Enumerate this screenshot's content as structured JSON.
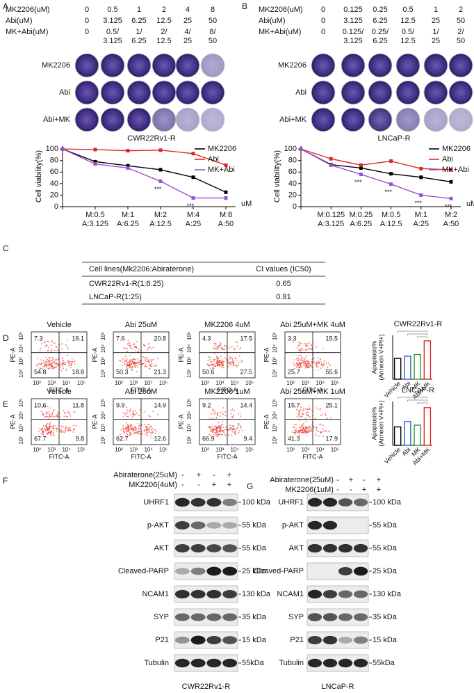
{
  "panels": {
    "a": "A",
    "b": "B",
    "c": "C",
    "d": "D",
    "e": "E",
    "f": "F",
    "g": "G"
  },
  "colony": [
    {
      "dose_rows": [
        {
          "label": "MK2206(uM)",
          "values": [
            [
              "0"
            ],
            [
              "0.5"
            ],
            [
              "1"
            ],
            [
              "2"
            ],
            [
              "4"
            ],
            [
              "8"
            ]
          ]
        },
        {
          "label": "Abi(uM)",
          "values": [
            [
              "0"
            ],
            [
              "3.125"
            ],
            [
              "6.25"
            ],
            [
              "12.5"
            ],
            [
              "25"
            ],
            [
              "50"
            ]
          ]
        },
        {
          "label": "MK+Abi(uM)",
          "values": [
            [
              "0"
            ],
            [
              "0.5/",
              "3.125"
            ],
            [
              "1/",
              "6.25"
            ],
            [
              "2/",
              "12.5"
            ],
            [
              "4/",
              "25"
            ],
            [
              "8/",
              "50"
            ]
          ]
        }
      ],
      "well_rows": [
        "MK2206",
        "Abi",
        "Abi+MK"
      ],
      "cell_line": "CWR22Rv1-R"
    },
    {
      "dose_rows": [
        {
          "label": "MK2206(uM)",
          "values": [
            [
              "0"
            ],
            [
              "0.125"
            ],
            [
              "0.25"
            ],
            [
              "0.5"
            ],
            [
              "1"
            ],
            [
              "2"
            ]
          ]
        },
        {
          "label": "Abi(uM)",
          "values": [
            [
              "0"
            ],
            [
              "3.125"
            ],
            [
              "6.25"
            ],
            [
              "12.5"
            ],
            [
              "25"
            ],
            [
              "50"
            ]
          ]
        },
        {
          "label": "MK+Abi(uM)",
          "values": [
            [
              "0"
            ],
            [
              "0.125/",
              "3.125"
            ],
            [
              "0.25/",
              "6.25"
            ],
            [
              "0.5/",
              "12.5"
            ],
            [
              "1/",
              "25"
            ],
            [
              "2/",
              "50"
            ]
          ]
        }
      ],
      "well_rows": [
        "MK2206",
        "Abi",
        "Abi+MK"
      ],
      "cell_line": "LNCaP-R"
    }
  ],
  "chart_data": [
    {
      "type": "line",
      "x_label": "uM",
      "y_label": "Cell viability(%)",
      "categories": [
        null,
        [
          "M:0.5",
          "A:3.125"
        ],
        [
          "M:1",
          "A:6.25"
        ],
        [
          "M:2",
          "A:12.5"
        ],
        [
          "M:4",
          "A:25"
        ],
        [
          "M:8",
          "A:50"
        ]
      ],
      "ylim": [
        0,
        105
      ],
      "yticks": [
        0,
        20,
        40,
        60,
        80,
        100
      ],
      "legend": "upper right",
      "series": [
        {
          "name": "MK2206",
          "color": "#000000",
          "values": [
            100,
            78,
            71,
            64,
            51,
            25
          ]
        },
        {
          "name": "Abi",
          "color": "#e0261f",
          "values": [
            100,
            99,
            97,
            98,
            92,
            72
          ]
        },
        {
          "name": "MK+Abi",
          "color": "#9b4fd8",
          "values": [
            100,
            74,
            67,
            44,
            15,
            15
          ],
          "significance": [
            null,
            null,
            null,
            "***",
            "***",
            null
          ]
        }
      ]
    },
    {
      "type": "line",
      "x_label": "uM",
      "y_label": "Cell viability(%)",
      "categories": [
        null,
        [
          "M:0.125",
          "A:3.125"
        ],
        [
          "M:0.25",
          "A:6.25"
        ],
        [
          "M:0.5",
          "A:12.5"
        ],
        [
          "M:1",
          "A:25"
        ],
        [
          "M:2",
          "A:50"
        ]
      ],
      "ylim": [
        0,
        105
      ],
      "yticks": [
        0,
        20,
        40,
        60,
        80,
        100
      ],
      "legend": "upper right",
      "series": [
        {
          "name": "MK2206",
          "color": "#000000",
          "values": [
            100,
            73,
            67,
            57,
            51,
            43
          ]
        },
        {
          "name": "Abi",
          "color": "#e0261f",
          "values": [
            100,
            83,
            72,
            79,
            66,
            64
          ]
        },
        {
          "name": "MK+Abi",
          "color": "#9b4fd8",
          "values": [
            100,
            72,
            56,
            39,
            20,
            14
          ],
          "significance": [
            null,
            null,
            "***",
            "***",
            "***",
            "***"
          ]
        }
      ]
    },
    {
      "type": "bar",
      "title": "CWR22Rv1-R",
      "y_label": "Apoptosis%",
      "y_label2": "(Annexin V+PI+)",
      "categories": [
        "Vehicle",
        "Abi",
        "MK",
        "Abi+MK"
      ],
      "values": [
        38,
        42,
        45,
        70
      ],
      "colors": [
        "#000000",
        "#2e5cd6",
        "#2ca02c",
        "#e0261f"
      ],
      "ylim": [
        0,
        80
      ]
    },
    {
      "type": "bar",
      "title": "LNCaP-R",
      "y_label": "Apoptosis%",
      "y_label2": "(Annexin V+PI+)",
      "categories": [
        "Vehicle",
        "Abi",
        "MK",
        "Abi+MK"
      ],
      "values": [
        21,
        27,
        23,
        43
      ],
      "colors": [
        "#000000",
        "#2e5cd6",
        "#2ca02c",
        "#e0261f"
      ],
      "ylim": [
        0,
        50
      ]
    }
  ],
  "table": {
    "header": [
      "Cell lines(Mk2206:Abiraterone)",
      "CI values (IC50)"
    ],
    "rows": [
      [
        "CWR22Rv1-R(1:6.25)",
        "0.65"
      ],
      [
        "LNCaP-R(1:25)",
        "0.81"
      ]
    ]
  },
  "flow": [
    {
      "x_label": "FITC-A",
      "y_label": "PE-A",
      "ticks": [
        "10²",
        "10³",
        "10⁴",
        "10⁵"
      ],
      "plots": [
        {
          "title": "Vehicle",
          "quadrants": [
            7.3,
            19.1,
            54.8,
            18.8
          ]
        },
        {
          "title": "Abi 25uM",
          "quadrants": [
            7.6,
            20.8,
            50.3,
            21.3
          ]
        },
        {
          "title": "MK2206 4uM",
          "quadrants": [
            4.3,
            17.5,
            50.6,
            27.5
          ]
        },
        {
          "title": "Abi 25uM+MK 4uM",
          "quadrants": [
            3.3,
            15.5,
            25.7,
            55.6
          ]
        }
      ]
    },
    {
      "x_label": "FITC-A",
      "y_label": "PE-A",
      "ticks": [
        "10²",
        "10³",
        "10⁴",
        "10⁵"
      ],
      "plots": [
        {
          "title": "Vehicle",
          "quadrants": [
            10.6,
            11.8,
            67.7,
            9.8
          ]
        },
        {
          "title": "Abi 25uM",
          "quadrants": [
            9.9,
            14.9,
            62.7,
            12.6
          ]
        },
        {
          "title": "MK2206 1uM",
          "quadrants": [
            9.2,
            14.4,
            66.9,
            9.4
          ]
        },
        {
          "title": "Abi 25uM+MK 1uM",
          "quadrants": [
            15.7,
            25.1,
            41.3,
            17.9
          ]
        }
      ]
    }
  ],
  "western": [
    {
      "treatments": [
        {
          "label": "Abiraterone(25uM)",
          "signs": [
            "-",
            "+",
            "-",
            "+"
          ]
        },
        {
          "label": "MK2206(4uM)",
          "signs": [
            "-",
            "-",
            "+",
            "+"
          ]
        }
      ],
      "blots": [
        {
          "protein": "UHRF1",
          "size": "100 kDa"
        },
        {
          "protein": "p-AKT",
          "size": "55 kDa"
        },
        {
          "protein": "AKT",
          "size": "55 kDa"
        },
        {
          "protein": "Cleaved-PARP",
          "size": "25 kDa"
        },
        {
          "protein": "NCAM1",
          "size": "130 kDa"
        },
        {
          "protein": "SYP",
          "size": "35 kDa"
        },
        {
          "protein": "P21",
          "size": "15 kDa"
        },
        {
          "protein": "Tubulin",
          "size": "55kDa"
        }
      ],
      "cell_line": "CWR22Rv1-R"
    },
    {
      "treatments": [
        {
          "label": "Abiraterone(25uM)",
          "signs": [
            "-",
            "+",
            "-",
            "+"
          ]
        },
        {
          "label": "MK2206(1uM)",
          "signs": [
            "-",
            "-",
            "+",
            "+"
          ]
        }
      ],
      "blots": [
        {
          "protein": "UHRF1",
          "size": "100 kDa"
        },
        {
          "protein": "p-AKT",
          "size": "55 kDa"
        },
        {
          "protein": "AKT",
          "size": "55 kDa"
        },
        {
          "protein": "Cleaved-PARP",
          "size": "25 kDa"
        },
        {
          "protein": "NCAM1",
          "size": "130 kDa"
        },
        {
          "protein": "SYP",
          "size": "35 kDa"
        },
        {
          "protein": "P21",
          "size": "15 kDa"
        },
        {
          "protein": "Tubulin",
          "size": "55kDa"
        }
      ],
      "cell_line": "LNCaP-R"
    }
  ]
}
